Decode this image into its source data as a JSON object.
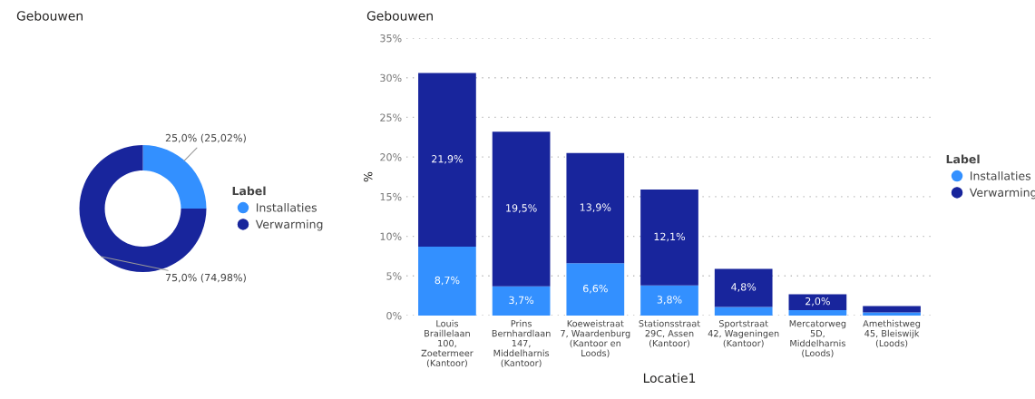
{
  "chart_data": [
    {
      "type": "donut",
      "title": "Gebouwen",
      "legend_title": "Label",
      "legend": "right",
      "categories": [
        "Installaties",
        "Verwarming"
      ],
      "values": [
        25.02,
        74.98
      ],
      "colors": [
        "#3390ff",
        "#18259c"
      ],
      "value_labels": [
        "25,0% (25,02%)",
        "75,0% (74,98%)"
      ]
    },
    {
      "type": "bar",
      "title": "Gebouwen",
      "stacked": true,
      "xlabel": "Locatie1",
      "ylabel": "%",
      "legend_title": "Label",
      "legend": "right",
      "grid": "y",
      "categories": [
        "Louis Braillelaan 100, Zoetermeer (Kantoor)",
        "Prins Bernhardlaan 147, Middelharnis (Kantoor)",
        "Koeweistraat 7, Waardenburg (Kantoor en Loods)",
        "Stationsstraat 29C, Assen (Kantoor)",
        "Sportstraat 42, Wageningen (Kantoor)",
        "Mercatorweg 5D, Middelharnis (Loods)",
        "Amethistweg 45, Bleiswijk (Loods)"
      ],
      "series": [
        {
          "name": "Installaties",
          "color": "#3390ff",
          "values": [
            8.7,
            3.7,
            6.6,
            3.8,
            1.1,
            0.7,
            0.4
          ],
          "value_labels": [
            "8,7%",
            "3,7%",
            "6,6%",
            "3,8%",
            null,
            null,
            null
          ]
        },
        {
          "name": "Verwarming",
          "color": "#18259c",
          "values": [
            21.9,
            19.5,
            13.9,
            12.1,
            4.8,
            2.0,
            0.8
          ],
          "value_labels": [
            "21,9%",
            "19,5%",
            "13,9%",
            "12,1%",
            "4,8%",
            "2,0%",
            null
          ]
        }
      ],
      "ylim": [
        0,
        35
      ],
      "yticks": [
        {
          "value": 0,
          "label": "0%"
        },
        {
          "value": 5,
          "label": "5%"
        },
        {
          "value": 10,
          "label": "10%"
        },
        {
          "value": 15,
          "label": "15%"
        },
        {
          "value": 20,
          "label": "20%"
        },
        {
          "value": 25,
          "label": "25%"
        },
        {
          "value": 30,
          "label": "30%"
        },
        {
          "value": 35,
          "label": "35%"
        }
      ]
    }
  ]
}
